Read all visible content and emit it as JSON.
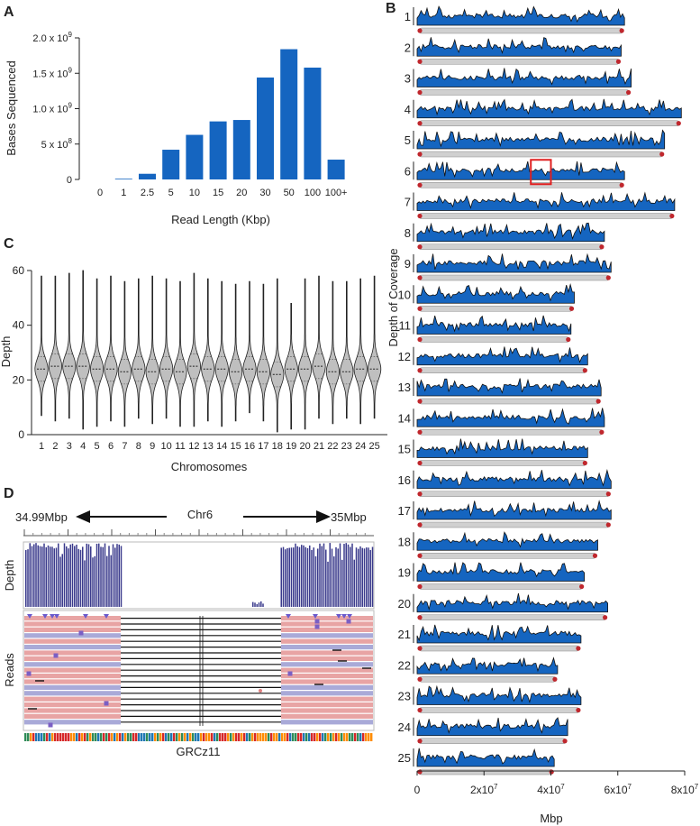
{
  "panel_labels": {
    "a": "A",
    "b": "B",
    "c": "C",
    "d": "D"
  },
  "colors": {
    "bar": "#1565c0",
    "violin": "#bfbfbf",
    "depth_bar": "#3a3a8c",
    "read_pink": "#e8a4a4",
    "read_blue": "#a9aad8",
    "highlight": "#e02020",
    "chrom_bar": "#d0d0d0",
    "chrom_end": "#c0272d"
  },
  "chart_data": [
    {
      "type": "bar",
      "panel": "A",
      "categories": [
        "0",
        "1",
        "2.5",
        "5",
        "10",
        "15",
        "20",
        "30",
        "50",
        "100",
        "100+"
      ],
      "values": [
        0,
        0.01,
        0.08,
        0.42,
        0.63,
        0.82,
        0.84,
        1.44,
        1.84,
        1.58,
        0.28
      ],
      "value_scale": "x 10^9",
      "xlabel": "Read Length (Kbp)",
      "ylabel": "Bases Sequenced",
      "ylim": [
        0,
        2.0
      ],
      "ytick_values": [
        0,
        0.5,
        1.0,
        1.5,
        2.0
      ],
      "ytick_labels": [
        "0",
        "5 x 10",
        "1.0 x 10",
        "1.5 x 10",
        "2.0 x 10"
      ],
      "ytick_exponents": [
        "",
        "8",
        "9",
        "9",
        "9"
      ]
    },
    {
      "type": "violin",
      "panel": "C",
      "categories": [
        "1",
        "2",
        "3",
        "4",
        "5",
        "6",
        "7",
        "8",
        "9",
        "10",
        "11",
        "12",
        "13",
        "14",
        "15",
        "16",
        "17",
        "18",
        "19",
        "20",
        "21",
        "22",
        "23",
        "24",
        "25"
      ],
      "medians": [
        24,
        25,
        25,
        25,
        24,
        24,
        23,
        24,
        23,
        24,
        23,
        25,
        24,
        24,
        23,
        24,
        23,
        22,
        24,
        24,
        25,
        23,
        23,
        24,
        24
      ],
      "maxima": [
        58,
        58,
        59,
        60,
        57,
        58,
        56,
        57,
        58,
        57,
        56,
        59,
        57,
        56,
        55,
        56,
        55,
        57,
        48,
        57,
        58,
        56,
        56,
        57,
        58
      ],
      "minima": [
        7,
        5,
        6,
        2,
        3,
        5,
        3,
        6,
        4,
        6,
        3,
        3,
        5,
        3,
        5,
        8,
        5,
        1,
        2,
        2,
        6,
        4,
        6,
        4,
        6
      ],
      "xlabel": "Chromosomes",
      "ylabel": "Depth",
      "ylim": [
        0,
        60
      ],
      "yticks": [
        0,
        20,
        40,
        60
      ]
    },
    {
      "type": "area",
      "panel": "B",
      "chromosomes": [
        "1",
        "2",
        "3",
        "4",
        "5",
        "6",
        "7",
        "8",
        "9",
        "10",
        "11",
        "12",
        "13",
        "14",
        "15",
        "16",
        "17",
        "18",
        "19",
        "20",
        "21",
        "22",
        "23",
        "24",
        "25"
      ],
      "lengths": [
        62000000.0,
        61000000.0,
        64000000.0,
        79000000.0,
        74000000.0,
        62000000.0,
        77000000.0,
        56000000.0,
        58000000.0,
        47000000.0,
        46000000.0,
        51000000.0,
        55000000.0,
        56000000.0,
        51000000.0,
        58000000.0,
        58000000.0,
        54000000.0,
        50000000.0,
        57000000.0,
        49000000.0,
        42000000.0,
        49000000.0,
        45000000.0,
        41000000.0
      ],
      "xlabel": "Mbp",
      "ylabel": "Depth of Coverage",
      "xlim": [
        0,
        80000000.0
      ],
      "xtick_values": [
        0,
        20000000.0,
        40000000.0,
        60000000.0,
        80000000.0
      ],
      "xtick_labels": [
        "0",
        "2x10",
        "4x10",
        "6x10",
        "8x10"
      ],
      "xtick_exponents": [
        "",
        "7",
        "7",
        "7",
        "7"
      ],
      "highlight": {
        "chromosome": "6",
        "start": 34000000.0,
        "end": 40000000.0
      }
    },
    {
      "type": "coverage-track",
      "panel": "D",
      "chromosome": "Chr6",
      "start_label": "34.99Mbp",
      "end_label": "35Mbp",
      "track_labels": [
        "Depth",
        "Reads"
      ],
      "reference": "GRCz11"
    }
  ]
}
